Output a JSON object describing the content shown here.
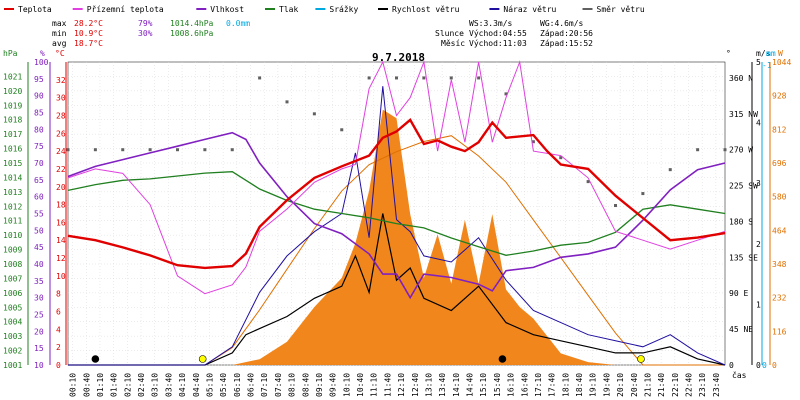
{
  "chart_data": {
    "type": "line",
    "title": "9.7.2018",
    "legend": [
      {
        "key": "teplota",
        "label": "Teplota",
        "color": "#e00000"
      },
      {
        "key": "prizemni",
        "label": "Přízemní teplota",
        "color": "#e040e0"
      },
      {
        "key": "vlhkost",
        "label": "Vlhkost",
        "color": "#8020c0"
      },
      {
        "key": "tlak",
        "label": "Tlak",
        "color": "#208020"
      },
      {
        "key": "srazky",
        "label": "Srážky",
        "color": "#00a8e0"
      },
      {
        "key": "rychlost",
        "label": "Rychlost větru",
        "color": "#000000"
      },
      {
        "key": "naraz",
        "label": "Náraz větru",
        "color": "#2010a0"
      },
      {
        "key": "smer",
        "label": "Směr větru",
        "color": "#606060"
      }
    ],
    "stats": [
      {
        "label": "max",
        "temp": "28.2°C",
        "hum": "79%",
        "press": "1014.4hPa",
        "rain": "0.0mm"
      },
      {
        "label": "min",
        "temp": "10.9°C",
        "hum": "30%",
        "press": "1008.6hPa"
      },
      {
        "label": "avg",
        "temp": "18.7°C"
      }
    ],
    "info": {
      "ws": "WS:3.3m/s",
      "wg": "WG:4.6m/s",
      "sun_label": "Slunce",
      "sunrise": "Východ:04:55",
      "sunset": "Západ:20:56",
      "moon_label": "Měsíc",
      "moonrise": "Východ:11:03",
      "moonset": "Západ:15:52"
    },
    "axis_units": {
      "hpa": "hPa",
      "pct": "%",
      "degc": "°C",
      "deg": "°",
      "ms": "m/s",
      "mm": "mm",
      "w": "W",
      "time": "čas"
    },
    "axes": {
      "hpa_ticks": [
        "1001",
        "1002",
        "1003",
        "1004",
        "1005",
        "1006",
        "1007",
        "1008",
        "1009",
        "1010",
        "1011",
        "1012",
        "1013",
        "1014",
        "1015",
        "1016",
        "1017",
        "1018",
        "1019",
        "1020",
        "1021"
      ],
      "pct_ticks": [
        "10",
        "15",
        "20",
        "25",
        "30",
        "35",
        "40",
        "45",
        "50",
        "55",
        "60",
        "65",
        "70",
        "75",
        "80",
        "85",
        "90",
        "95",
        "100"
      ],
      "temp_ticks": [
        "0",
        "2",
        "4",
        "6",
        "8",
        "10",
        "12",
        "14",
        "16",
        "18",
        "20",
        "22",
        "24",
        "26",
        "28",
        "30",
        "32"
      ],
      "dir_ticks": [
        "0",
        "45 NE",
        "90 E",
        "135 SE",
        "180 S",
        "225 SW",
        "270 W",
        "315 NW",
        "360 N"
      ],
      "ms_ticks": [
        "0",
        "1",
        "2",
        "3",
        "4",
        "5"
      ],
      "mm_ticks": [
        "0",
        "-1"
      ],
      "w_ticks": [
        "0",
        "116",
        "232",
        "348",
        "464",
        "580",
        "696",
        "812",
        "928",
        "1044"
      ],
      "time_ticks": [
        "00:10",
        "00:40",
        "01:10",
        "01:40",
        "02:10",
        "02:40",
        "03:10",
        "03:40",
        "04:10",
        "04:40",
        "05:10",
        "05:40",
        "06:10",
        "06:40",
        "07:10",
        "07:40",
        "08:10",
        "08:40",
        "09:10",
        "09:40",
        "10:10",
        "10:40",
        "11:10",
        "11:40",
        "12:10",
        "12:40",
        "13:10",
        "13:40",
        "14:10",
        "14:40",
        "15:10",
        "15:40",
        "16:10",
        "16:40",
        "17:10",
        "17:40",
        "18:10",
        "18:40",
        "19:10",
        "19:40",
        "20:10",
        "20:40",
        "21:10",
        "21:40",
        "22:10",
        "22:40",
        "23:10",
        "23:40"
      ]
    },
    "ranges": {
      "temp_c": [
        0,
        34
      ],
      "pressure_hpa": [
        1001,
        1022
      ],
      "humidity_pct": [
        10,
        100
      ],
      "wind_ms": [
        0,
        5
      ],
      "solar_w": [
        0,
        1044
      ],
      "direction_deg": [
        0,
        360
      ]
    },
    "series": {
      "teplota_c": [
        [
          0,
          14.5
        ],
        [
          1,
          14
        ],
        [
          2,
          13.2
        ],
        [
          3,
          12.3
        ],
        [
          4,
          11.2
        ],
        [
          5,
          10.9
        ],
        [
          6,
          11.1
        ],
        [
          6.5,
          12.5
        ],
        [
          7,
          15.5
        ],
        [
          8,
          18.5
        ],
        [
          9,
          21
        ],
        [
          10,
          22.3
        ],
        [
          11,
          23.5
        ],
        [
          11.5,
          25.5
        ],
        [
          12,
          26.2
        ],
        [
          12.5,
          27.5
        ],
        [
          13,
          24.8
        ],
        [
          13.5,
          25.2
        ],
        [
          14,
          24.5
        ],
        [
          14.5,
          24
        ],
        [
          15,
          25
        ],
        [
          15.5,
          27.2
        ],
        [
          16,
          25.5
        ],
        [
          17,
          25.8
        ],
        [
          17.5,
          24
        ],
        [
          18,
          22.5
        ],
        [
          19,
          22
        ],
        [
          20,
          19
        ],
        [
          21,
          16.5
        ],
        [
          22,
          14
        ],
        [
          23,
          14.3
        ],
        [
          24,
          14.8
        ]
      ],
      "prizemni_c": [
        [
          0,
          21
        ],
        [
          1,
          22
        ],
        [
          2,
          21.5
        ],
        [
          3,
          18
        ],
        [
          4,
          10
        ],
        [
          5,
          8
        ],
        [
          6,
          9
        ],
        [
          6.5,
          11
        ],
        [
          7,
          15
        ],
        [
          8,
          17.5
        ],
        [
          9,
          20.5
        ],
        [
          10,
          22
        ],
        [
          10.5,
          22.5
        ],
        [
          11,
          31
        ],
        [
          11.5,
          34
        ],
        [
          12,
          28
        ],
        [
          12.5,
          30
        ],
        [
          13,
          34
        ],
        [
          13.5,
          24
        ],
        [
          14,
          32
        ],
        [
          14.5,
          25
        ],
        [
          15,
          34
        ],
        [
          15.5,
          25
        ],
        [
          16,
          30
        ],
        [
          16.5,
          34
        ],
        [
          17,
          24
        ],
        [
          18,
          23.5
        ],
        [
          19,
          21
        ],
        [
          20,
          15
        ],
        [
          21,
          14
        ],
        [
          22,
          13
        ],
        [
          23,
          14
        ],
        [
          24,
          15
        ]
      ],
      "vlhkost_pct": [
        [
          0,
          66
        ],
        [
          1,
          69
        ],
        [
          2,
          71
        ],
        [
          3,
          73
        ],
        [
          4,
          75
        ],
        [
          5,
          77
        ],
        [
          6,
          79
        ],
        [
          6.5,
          77
        ],
        [
          7,
          70
        ],
        [
          8,
          60
        ],
        [
          9,
          52
        ],
        [
          10,
          49
        ],
        [
          11,
          43
        ],
        [
          11.5,
          37
        ],
        [
          12,
          37
        ],
        [
          12.5,
          30
        ],
        [
          13,
          37
        ],
        [
          14,
          36
        ],
        [
          15,
          34
        ],
        [
          15.5,
          32
        ],
        [
          16,
          38
        ],
        [
          17,
          39
        ],
        [
          18,
          42
        ],
        [
          19,
          43
        ],
        [
          20,
          45
        ],
        [
          21,
          53
        ],
        [
          22,
          62
        ],
        [
          23,
          68
        ],
        [
          24,
          70
        ]
      ],
      "tlak_hpa": [
        [
          0,
          1013.1
        ],
        [
          1,
          1013.5
        ],
        [
          2,
          1013.8
        ],
        [
          3,
          1013.9
        ],
        [
          4,
          1014.1
        ],
        [
          5,
          1014.3
        ],
        [
          6,
          1014.4
        ],
        [
          6.5,
          1013.8
        ],
        [
          7,
          1013.2
        ],
        [
          8,
          1012.4
        ],
        [
          9,
          1011.8
        ],
        [
          10,
          1011.5
        ],
        [
          11,
          1011.2
        ],
        [
          12,
          1010.8
        ],
        [
          13,
          1010.5
        ],
        [
          14,
          1009.8
        ],
        [
          15,
          1009.2
        ],
        [
          16,
          1008.6
        ],
        [
          17,
          1008.9
        ],
        [
          18,
          1009.3
        ],
        [
          19,
          1009.5
        ],
        [
          20,
          1010.2
        ],
        [
          21,
          1011.8
        ],
        [
          22,
          1012.1
        ],
        [
          23,
          1011.8
        ],
        [
          24,
          1011.5
        ]
      ],
      "rychlost_ms": [
        [
          0,
          0
        ],
        [
          1,
          0
        ],
        [
          2,
          0
        ],
        [
          3,
          0
        ],
        [
          4,
          0
        ],
        [
          5,
          0
        ],
        [
          6,
          0.2
        ],
        [
          6.5,
          0.5
        ],
        [
          7,
          0.6
        ],
        [
          8,
          0.8
        ],
        [
          9,
          1.1
        ],
        [
          10,
          1.3
        ],
        [
          10.5,
          1.8
        ],
        [
          11,
          1.2
        ],
        [
          11.5,
          2.5
        ],
        [
          12,
          1.4
        ],
        [
          12.5,
          1.6
        ],
        [
          13,
          1.1
        ],
        [
          14,
          0.9
        ],
        [
          15,
          1.3
        ],
        [
          16,
          0.7
        ],
        [
          17,
          0.5
        ],
        [
          18,
          0.4
        ],
        [
          19,
          0.3
        ],
        [
          20,
          0.2
        ],
        [
          21,
          0.2
        ],
        [
          22,
          0.3
        ],
        [
          23,
          0.1
        ],
        [
          24,
          0
        ]
      ],
      "naraz_ms": [
        [
          0,
          0
        ],
        [
          1,
          0
        ],
        [
          2,
          0
        ],
        [
          3,
          0
        ],
        [
          4,
          0
        ],
        [
          5,
          0
        ],
        [
          6,
          0.3
        ],
        [
          7,
          1.2
        ],
        [
          8,
          1.8
        ],
        [
          9,
          2.2
        ],
        [
          10,
          2.5
        ],
        [
          10.5,
          3.5
        ],
        [
          11,
          2.1
        ],
        [
          11.5,
          4.6
        ],
        [
          12,
          2.4
        ],
        [
          12.5,
          2.2
        ],
        [
          13,
          1.8
        ],
        [
          14,
          1.7
        ],
        [
          15,
          2.1
        ],
        [
          16,
          1.4
        ],
        [
          17,
          0.9
        ],
        [
          18,
          0.7
        ],
        [
          19,
          0.5
        ],
        [
          20,
          0.4
        ],
        [
          21,
          0.3
        ],
        [
          22,
          0.5
        ],
        [
          23,
          0.2
        ],
        [
          24,
          0
        ]
      ],
      "smer_deg": [
        [
          0,
          270
        ],
        [
          1,
          270
        ],
        [
          2,
          270
        ],
        [
          3,
          270
        ],
        [
          4,
          270
        ],
        [
          5,
          270
        ],
        [
          6,
          270
        ],
        [
          7,
          360
        ],
        [
          8,
          330
        ],
        [
          9,
          315
        ],
        [
          10,
          295
        ],
        [
          11,
          360
        ],
        [
          12,
          360
        ],
        [
          13,
          360
        ],
        [
          14,
          360
        ],
        [
          15,
          360
        ],
        [
          16,
          340
        ],
        [
          17,
          280
        ],
        [
          18,
          260
        ],
        [
          19,
          230
        ],
        [
          20,
          200
        ],
        [
          21,
          215
        ],
        [
          22,
          245
        ],
        [
          23,
          270
        ],
        [
          24,
          270
        ]
      ],
      "slunce_w": [
        [
          0,
          0
        ],
        [
          5,
          0
        ],
        [
          6,
          60
        ],
        [
          7,
          190
        ],
        [
          8,
          330
        ],
        [
          9,
          470
        ],
        [
          10,
          600
        ],
        [
          11,
          690
        ],
        [
          12,
          735
        ],
        [
          13,
          770
        ],
        [
          14,
          790
        ],
        [
          15,
          720
        ],
        [
          16,
          630
        ],
        [
          17,
          500
        ],
        [
          18,
          370
        ],
        [
          19,
          240
        ],
        [
          20,
          110
        ],
        [
          21,
          0
        ],
        [
          24,
          0
        ]
      ],
      "slunce_mereni_w": [
        [
          0,
          0
        ],
        [
          6,
          0
        ],
        [
          7,
          20
        ],
        [
          8,
          80
        ],
        [
          9,
          200
        ],
        [
          10,
          300
        ],
        [
          10.5,
          420
        ],
        [
          11,
          600
        ],
        [
          11.5,
          880
        ],
        [
          12,
          850
        ],
        [
          12.5,
          520
        ],
        [
          13,
          300
        ],
        [
          13.5,
          450
        ],
        [
          14,
          280
        ],
        [
          14.5,
          500
        ],
        [
          15,
          280
        ],
        [
          15.5,
          520
        ],
        [
          16,
          260
        ],
        [
          16.5,
          200
        ],
        [
          17,
          160
        ],
        [
          17.5,
          100
        ],
        [
          18,
          40
        ],
        [
          19,
          10
        ],
        [
          20,
          0
        ],
        [
          24,
          0
        ]
      ]
    }
  }
}
